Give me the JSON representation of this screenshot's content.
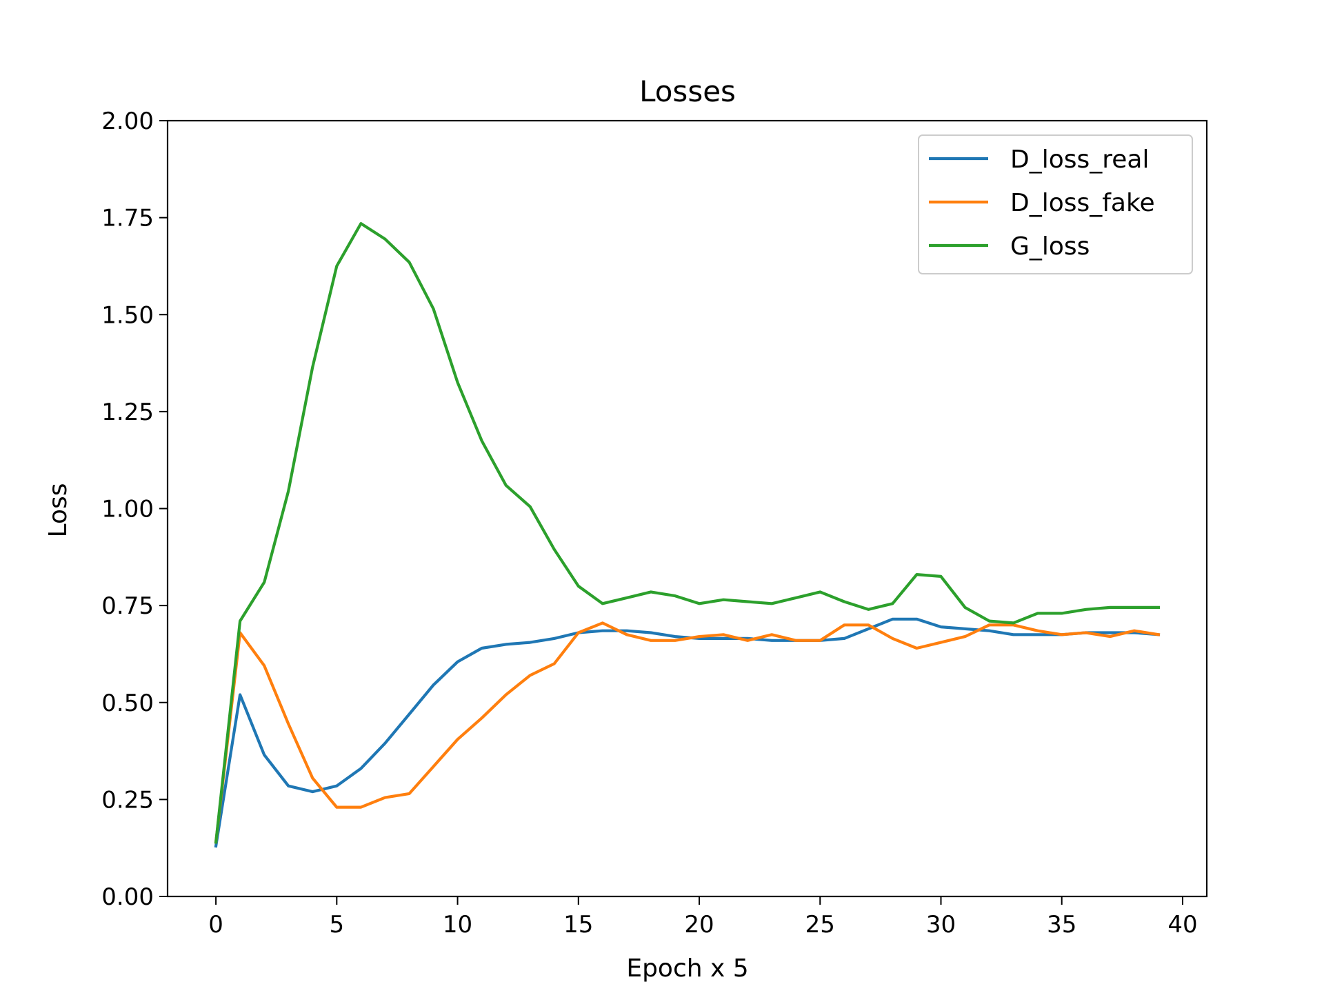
{
  "chart_data": {
    "type": "line",
    "title": "Losses",
    "xlabel": "Epoch x 5",
    "ylabel": "Loss",
    "xlim": [
      -2,
      41
    ],
    "ylim": [
      0,
      2
    ],
    "xticks": [
      0,
      5,
      10,
      15,
      20,
      25,
      30,
      35,
      40
    ],
    "yticks": [
      0.0,
      0.25,
      0.5,
      0.75,
      1.0,
      1.25,
      1.5,
      1.75,
      2.0
    ],
    "xtick_labels": [
      "0",
      "5",
      "10",
      "15",
      "20",
      "25",
      "30",
      "35",
      "40"
    ],
    "ytick_labels": [
      "0.00",
      "0.25",
      "0.50",
      "0.75",
      "1.00",
      "1.25",
      "1.50",
      "1.75",
      "2.00"
    ],
    "grid": false,
    "legend_position": "top-right",
    "x": [
      0,
      1,
      2,
      3,
      4,
      5,
      6,
      7,
      8,
      9,
      10,
      11,
      12,
      13,
      14,
      15,
      16,
      17,
      18,
      19,
      20,
      21,
      22,
      23,
      24,
      25,
      26,
      27,
      28,
      29,
      30,
      31,
      32,
      33,
      34,
      35,
      36,
      37,
      38,
      39
    ],
    "series": [
      {
        "name": "D_loss_real",
        "color": "#1f77b4",
        "values": [
          0.13,
          0.52,
          0.365,
          0.285,
          0.27,
          0.285,
          0.33,
          0.395,
          0.47,
          0.545,
          0.605,
          0.64,
          0.65,
          0.655,
          0.665,
          0.68,
          0.685,
          0.685,
          0.68,
          0.67,
          0.665,
          0.665,
          0.665,
          0.66,
          0.66,
          0.66,
          0.665,
          0.69,
          0.715,
          0.715,
          0.695,
          0.69,
          0.685,
          0.675,
          0.675,
          0.675,
          0.68,
          0.68,
          0.68,
          0.675
        ]
      },
      {
        "name": "D_loss_fake",
        "color": "#ff7f0e",
        "values": [
          0.14,
          0.68,
          0.595,
          0.445,
          0.305,
          0.23,
          0.23,
          0.255,
          0.265,
          0.335,
          0.405,
          0.46,
          0.52,
          0.57,
          0.6,
          0.68,
          0.705,
          0.675,
          0.66,
          0.66,
          0.67,
          0.675,
          0.66,
          0.675,
          0.66,
          0.66,
          0.7,
          0.7,
          0.665,
          0.64,
          0.655,
          0.67,
          0.7,
          0.7,
          0.685,
          0.675,
          0.68,
          0.67,
          0.685,
          0.675
        ]
      },
      {
        "name": "G_loss",
        "color": "#2ca02c",
        "values": [
          0.14,
          0.71,
          0.81,
          1.045,
          1.365,
          1.625,
          1.735,
          1.695,
          1.635,
          1.515,
          1.325,
          1.175,
          1.06,
          1.005,
          0.895,
          0.8,
          0.755,
          0.77,
          0.785,
          0.775,
          0.755,
          0.765,
          0.76,
          0.755,
          0.77,
          0.785,
          0.76,
          0.74,
          0.755,
          0.83,
          0.825,
          0.745,
          0.71,
          0.705,
          0.73,
          0.73,
          0.74,
          0.745,
          0.745,
          0.745
        ]
      }
    ]
  }
}
